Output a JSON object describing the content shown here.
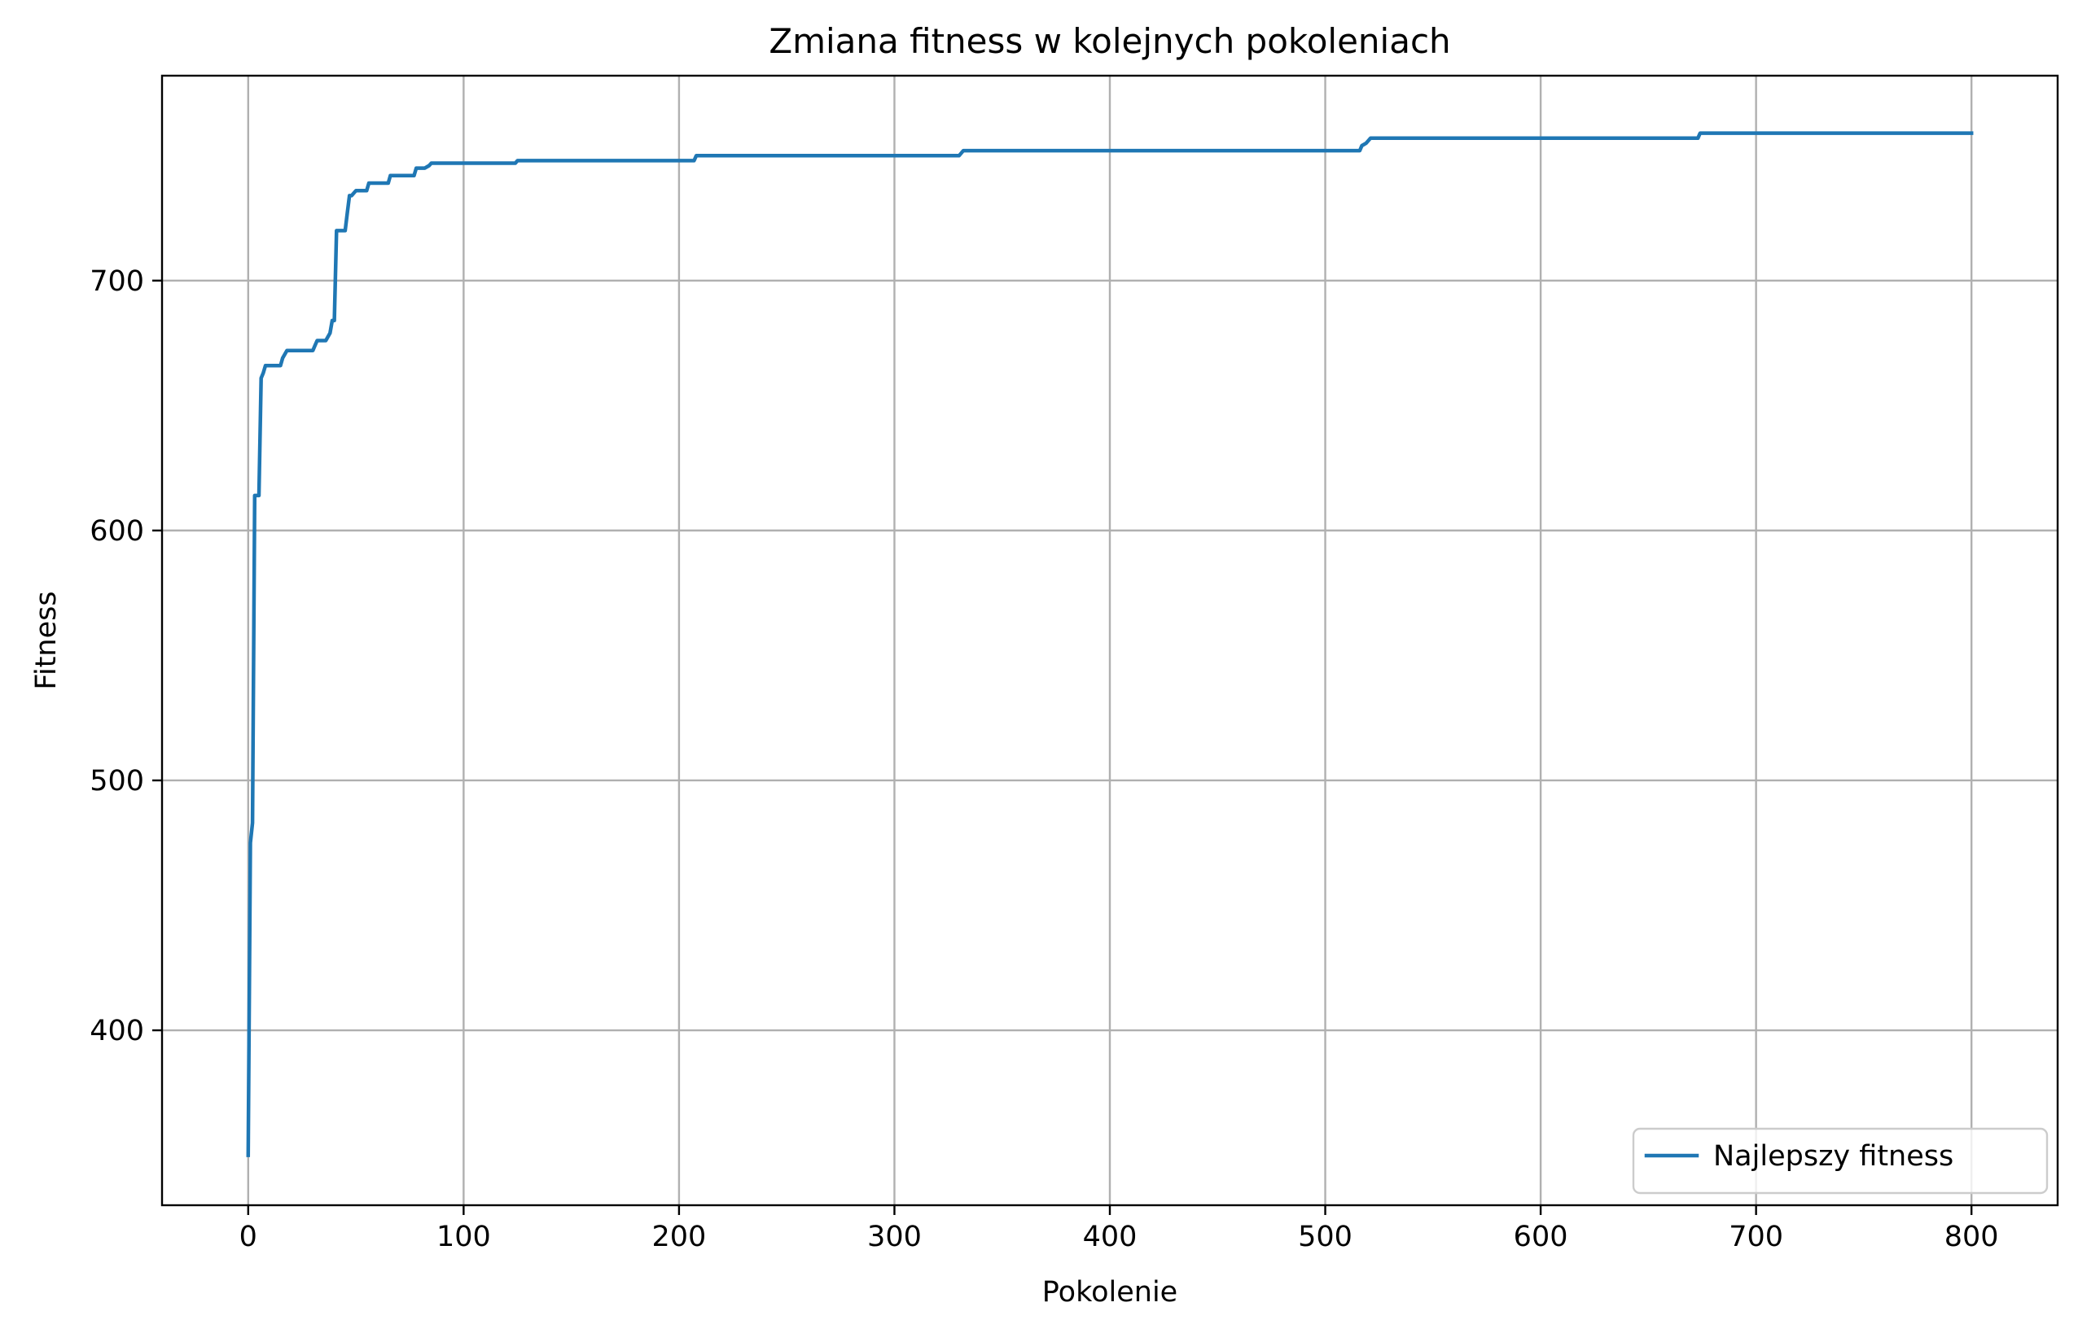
{
  "chart_data": {
    "type": "line",
    "title": "Zmiana fitness w kolejnych pokoleniach",
    "xlabel": "Pokolenie",
    "ylabel": "Fitness",
    "xlim": [
      -40,
      840
    ],
    "ylim": [
      330,
      782
    ],
    "xticks": [
      0,
      100,
      200,
      300,
      400,
      500,
      600,
      700,
      800
    ],
    "yticks": [
      400,
      500,
      600,
      700
    ],
    "xtick_labels": [
      "0",
      "100",
      "200",
      "300",
      "400",
      "500",
      "600",
      "700",
      "800"
    ],
    "ytick_labels": [
      "400",
      "500",
      "600",
      "700"
    ],
    "grid": true,
    "legend_position": "lower-right",
    "colors": {
      "series": "#1f77b4"
    },
    "series": [
      {
        "name": "Najlepszy fitness",
        "x": [
          0,
          1,
          2,
          3,
          4,
          5,
          6,
          7,
          8,
          10,
          15,
          16,
          18,
          20,
          25,
          30,
          31,
          32,
          35,
          36,
          38,
          39,
          40,
          41,
          42,
          45,
          46,
          47,
          48,
          50,
          55,
          56,
          60,
          65,
          66,
          70,
          77,
          78,
          82,
          84,
          85,
          90,
          100,
          120,
          124,
          125,
          130,
          150,
          200,
          207,
          208,
          210,
          250,
          300,
          330,
          331,
          332,
          400,
          450,
          500,
          516,
          517,
          519,
          520,
          521,
          600,
          650,
          673,
          674,
          675,
          700,
          750,
          800
        ],
        "values": [
          350,
          475,
          483,
          614,
          614,
          614,
          661,
          663,
          666,
          666,
          666,
          669,
          672,
          672,
          672,
          672,
          674,
          676,
          676,
          676,
          679,
          684,
          684,
          720,
          720,
          720,
          727,
          734,
          734,
          736,
          736,
          739,
          739,
          739,
          742,
          742,
          742,
          745,
          745,
          746,
          747,
          747,
          747,
          747,
          747,
          748,
          748,
          748,
          748,
          748,
          750,
          750,
          750,
          750,
          750,
          751,
          752,
          752,
          752,
          752,
          752,
          754,
          755,
          756,
          757,
          757,
          757,
          757,
          759,
          759,
          759,
          759,
          759
        ]
      }
    ]
  }
}
